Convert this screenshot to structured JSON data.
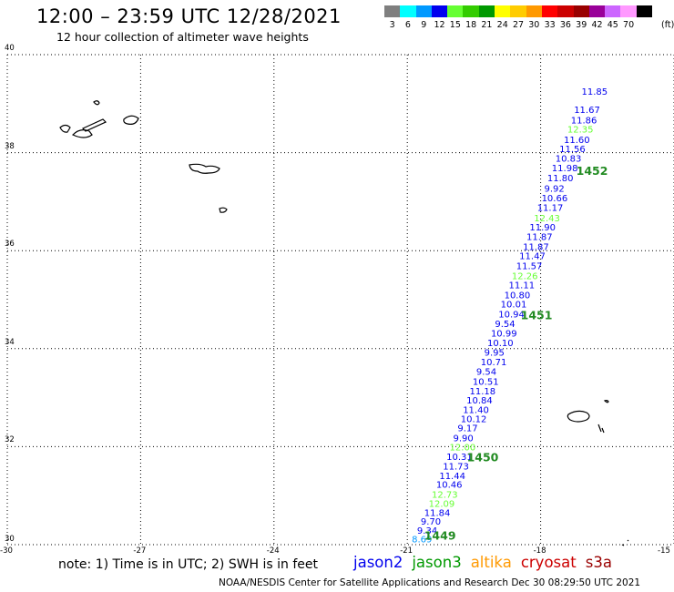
{
  "header": {
    "title": "12:00 – 23:59 UTC 12/28/2021",
    "subtitle": "12 hour collection of altimeter wave heights"
  },
  "colorbar": {
    "unit": "(ft)",
    "bins": [
      {
        "color": "#7f7f7f",
        "label": "3"
      },
      {
        "color": "#00ffff",
        "label": "6"
      },
      {
        "color": "#0099ff",
        "label": "9"
      },
      {
        "color": "#0000ee",
        "label": "12"
      },
      {
        "color": "#66ff33",
        "label": "15"
      },
      {
        "color": "#33cc00",
        "label": "18"
      },
      {
        "color": "#009900",
        "label": "21"
      },
      {
        "color": "#ffff00",
        "label": "24"
      },
      {
        "color": "#ffcc00",
        "label": "27"
      },
      {
        "color": "#ff9900",
        "label": "30"
      },
      {
        "color": "#ff0000",
        "label": "33"
      },
      {
        "color": "#cc0000",
        "label": "36"
      },
      {
        "color": "#990000",
        "label": "39"
      },
      {
        "color": "#990099",
        "label": "42"
      },
      {
        "color": "#cc66ff",
        "label": "45"
      },
      {
        "color": "#ff99ff",
        "label": "70"
      },
      {
        "color": "#000000",
        "label": ""
      }
    ]
  },
  "map": {
    "lon_range": [
      -30,
      -15
    ],
    "lat_range": [
      30,
      40
    ],
    "x_ticks": [
      "-30",
      "-27",
      "-24",
      "-21",
      "-18",
      "-15"
    ],
    "y_ticks": [
      "30",
      "32",
      "34",
      "36",
      "38",
      "40"
    ]
  },
  "track": {
    "points": [
      {
        "lon": -20.9,
        "lat": 30.05,
        "value": "8.69",
        "color": "#0099ff"
      },
      {
        "lon": -20.78,
        "lat": 30.22,
        "value": "9.34",
        "color": "#0000ee"
      },
      {
        "lon": -20.7,
        "lat": 30.41,
        "value": "9.70",
        "color": "#0000ee"
      },
      {
        "lon": -20.62,
        "lat": 30.59,
        "value": "11.84",
        "color": "#0000ee"
      },
      {
        "lon": -20.52,
        "lat": 30.77,
        "value": "12.09",
        "color": "#66ff33"
      },
      {
        "lon": -20.45,
        "lat": 30.96,
        "value": "12.73",
        "color": "#66ff33"
      },
      {
        "lon": -20.35,
        "lat": 31.16,
        "value": "10.46",
        "color": "#0000ee"
      },
      {
        "lon": -20.28,
        "lat": 31.34,
        "value": "11.44",
        "color": "#0000ee"
      },
      {
        "lon": -20.2,
        "lat": 31.53,
        "value": "11.73",
        "color": "#0000ee"
      },
      {
        "lon": -20.12,
        "lat": 31.73,
        "value": "10.31",
        "color": "#0000ee"
      },
      {
        "lon": -20.05,
        "lat": 31.92,
        "value": "12.00",
        "color": "#66ff33"
      },
      {
        "lon": -19.97,
        "lat": 32.11,
        "value": "9.90",
        "color": "#0000ee"
      },
      {
        "lon": -19.87,
        "lat": 32.31,
        "value": "9.17",
        "color": "#0000ee"
      },
      {
        "lon": -19.8,
        "lat": 32.5,
        "value": "10.12",
        "color": "#0000ee"
      },
      {
        "lon": -19.75,
        "lat": 32.69,
        "value": "11.40",
        "color": "#0000ee"
      },
      {
        "lon": -19.67,
        "lat": 32.88,
        "value": "10.84",
        "color": "#0000ee"
      },
      {
        "lon": -19.6,
        "lat": 33.07,
        "value": "11.18",
        "color": "#0000ee"
      },
      {
        "lon": -19.53,
        "lat": 33.26,
        "value": "10.51",
        "color": "#0000ee"
      },
      {
        "lon": -19.45,
        "lat": 33.47,
        "value": "9.54",
        "color": "#0000ee"
      },
      {
        "lon": -19.35,
        "lat": 33.66,
        "value": "10.71",
        "color": "#0000ee"
      },
      {
        "lon": -19.27,
        "lat": 33.86,
        "value": "9.95",
        "color": "#0000ee"
      },
      {
        "lon": -19.2,
        "lat": 34.05,
        "value": "10.10",
        "color": "#0000ee"
      },
      {
        "lon": -19.12,
        "lat": 34.25,
        "value": "10.99",
        "color": "#0000ee"
      },
      {
        "lon": -19.03,
        "lat": 34.44,
        "value": "9.54",
        "color": "#0000ee"
      },
      {
        "lon": -18.95,
        "lat": 34.64,
        "value": "10.94",
        "color": "#0000ee"
      },
      {
        "lon": -18.9,
        "lat": 34.84,
        "value": "10.01",
        "color": "#0000ee"
      },
      {
        "lon": -18.82,
        "lat": 35.03,
        "value": "10.80",
        "color": "#0000ee"
      },
      {
        "lon": -18.72,
        "lat": 35.23,
        "value": "11.11",
        "color": "#0000ee"
      },
      {
        "lon": -18.65,
        "lat": 35.42,
        "value": "12.26",
        "color": "#66ff33"
      },
      {
        "lon": -18.55,
        "lat": 35.62,
        "value": "11.57",
        "color": "#0000ee"
      },
      {
        "lon": -18.48,
        "lat": 35.83,
        "value": "11.47",
        "color": "#0000ee"
      },
      {
        "lon": -18.4,
        "lat": 36.01,
        "value": "11.87",
        "color": "#0000ee"
      },
      {
        "lon": -18.32,
        "lat": 36.22,
        "value": "11.87",
        "color": "#0000ee"
      },
      {
        "lon": -18.25,
        "lat": 36.41,
        "value": "11.90",
        "color": "#0000ee"
      },
      {
        "lon": -18.15,
        "lat": 36.6,
        "value": "12.43",
        "color": "#66ff33"
      },
      {
        "lon": -18.08,
        "lat": 36.81,
        "value": "11.17",
        "color": "#0000ee"
      },
      {
        "lon": -17.98,
        "lat": 37.01,
        "value": "10.66",
        "color": "#0000ee"
      },
      {
        "lon": -17.92,
        "lat": 37.2,
        "value": "9.92",
        "color": "#0000ee"
      },
      {
        "lon": -17.85,
        "lat": 37.42,
        "value": "11.80",
        "color": "#0000ee"
      },
      {
        "lon": -17.75,
        "lat": 37.62,
        "value": "11.98",
        "color": "#0000ee"
      },
      {
        "lon": -17.67,
        "lat": 37.82,
        "value": "10.83",
        "color": "#0000ee"
      },
      {
        "lon": -17.58,
        "lat": 38.01,
        "value": "11.56",
        "color": "#0000ee"
      },
      {
        "lon": -17.48,
        "lat": 38.2,
        "value": "11.60",
        "color": "#0000ee"
      },
      {
        "lon": -17.4,
        "lat": 38.41,
        "value": "12.35",
        "color": "#66ff33"
      },
      {
        "lon": -17.32,
        "lat": 38.6,
        "value": "11.86",
        "color": "#0000ee"
      },
      {
        "lon": -17.25,
        "lat": 38.81,
        "value": "11.67",
        "color": "#0000ee"
      },
      {
        "lon": -17.08,
        "lat": 39.18,
        "value": "11.85",
        "color": "#0000ee"
      }
    ],
    "pass_labels": [
      {
        "lon": -20.62,
        "lat": 30.1,
        "label": "1449"
      },
      {
        "lon": -19.66,
        "lat": 31.7,
        "label": "1450"
      },
      {
        "lon": -18.45,
        "lat": 34.6,
        "label": "1451"
      },
      {
        "lon": -17.2,
        "lat": 37.55,
        "label": "1452"
      }
    ]
  },
  "footer": {
    "note": "note:  1) Time is in UTC;  2) SWH is in feet",
    "legend": [
      {
        "label": "jason2",
        "color": "#0000ee"
      },
      {
        "label": "jason3",
        "color": "#009900"
      },
      {
        "label": "altika",
        "color": "#ff9900"
      },
      {
        "label": "cryosat",
        "color": "#cc0000"
      },
      {
        "label": "s3a",
        "color": "#990000"
      }
    ],
    "credit": "NOAA/NESDIS Center for Satellite Applications and Research     Dec 30 08:29:50 UTC 2021"
  }
}
